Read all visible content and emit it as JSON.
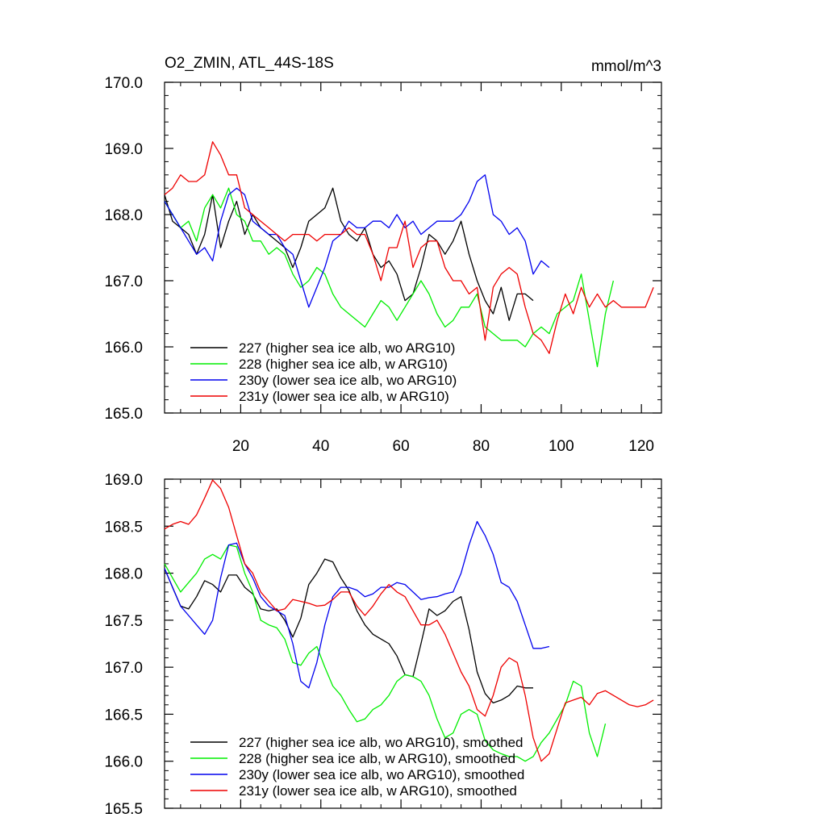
{
  "chart_data": [
    {
      "type": "line",
      "title": "O2_ZMIN, ATL_44S-18S",
      "units": "mmol/m^3",
      "xlim": [
        1,
        125
      ],
      "ylim": [
        165.0,
        170.0
      ],
      "xticks": [
        20,
        40,
        60,
        80,
        100,
        120
      ],
      "yticks": [
        "165.0",
        "166.0",
        "167.0",
        "168.0",
        "169.0",
        "170.0"
      ],
      "show_x_tick_labels": true,
      "series": [
        {
          "name": "227 (higher sea ice alb, wo ARG10)",
          "color": "#000000",
          "x": [
            1,
            3,
            5,
            7,
            9,
            11,
            13,
            15,
            17,
            19,
            21,
            23,
            25,
            27,
            29,
            31,
            33,
            35,
            37,
            39,
            41,
            43,
            45,
            47,
            49,
            51,
            53,
            55,
            57,
            59,
            61,
            63,
            65,
            67,
            69,
            71,
            73,
            75,
            77,
            79,
            81,
            83,
            85,
            87,
            89,
            91,
            93
          ],
          "y": [
            168.3,
            167.9,
            167.8,
            167.7,
            167.4,
            167.7,
            168.3,
            167.5,
            167.9,
            168.2,
            167.7,
            168.0,
            167.8,
            167.7,
            167.6,
            167.5,
            167.2,
            167.5,
            167.9,
            168.0,
            168.1,
            168.4,
            167.9,
            167.7,
            167.6,
            167.8,
            167.4,
            167.2,
            167.3,
            167.1,
            166.7,
            166.8,
            167.2,
            167.7,
            167.6,
            167.4,
            167.6,
            167.9,
            167.4,
            167.0,
            166.7,
            166.5,
            166.9,
            166.4,
            166.8,
            166.8,
            166.7
          ]
        },
        {
          "name": "228 (higher sea ice alb, w ARG10)",
          "color": "#00ee00",
          "x": [
            1,
            3,
            5,
            7,
            9,
            11,
            13,
            15,
            17,
            19,
            21,
            23,
            25,
            27,
            29,
            31,
            33,
            35,
            37,
            39,
            41,
            43,
            45,
            47,
            49,
            51,
            53,
            55,
            57,
            59,
            61,
            63,
            65,
            67,
            69,
            71,
            73,
            75,
            77,
            79,
            81,
            83,
            85,
            87,
            89,
            91,
            93,
            95,
            97,
            99,
            101,
            103,
            105,
            107,
            109,
            111,
            113
          ],
          "y": [
            168.2,
            168.0,
            167.8,
            167.9,
            167.6,
            168.1,
            168.3,
            168.1,
            168.4,
            168.0,
            167.9,
            167.6,
            167.6,
            167.4,
            167.5,
            167.4,
            167.1,
            166.9,
            167.0,
            167.2,
            167.1,
            166.8,
            166.6,
            166.5,
            166.4,
            166.3,
            166.5,
            166.7,
            166.6,
            166.4,
            166.6,
            166.8,
            167.0,
            166.8,
            166.5,
            166.3,
            166.4,
            166.6,
            166.6,
            166.8,
            166.3,
            166.2,
            166.1,
            166.1,
            166.1,
            166.0,
            166.2,
            166.3,
            166.2,
            166.5,
            166.6,
            166.7,
            167.1,
            166.4,
            165.7,
            166.5,
            167.0
          ]
        },
        {
          "name": "230y (lower sea ice alb, wo ARG10)",
          "color": "#0000ee",
          "x": [
            1,
            3,
            5,
            7,
            9,
            11,
            13,
            15,
            17,
            19,
            21,
            23,
            25,
            27,
            29,
            31,
            33,
            35,
            37,
            39,
            41,
            43,
            45,
            47,
            49,
            51,
            53,
            55,
            57,
            59,
            61,
            63,
            65,
            67,
            69,
            71,
            73,
            75,
            77,
            79,
            81,
            83,
            85,
            87,
            89,
            91,
            93,
            95,
            97
          ],
          "y": [
            168.2,
            168.0,
            167.8,
            167.6,
            167.4,
            167.5,
            167.3,
            167.9,
            168.3,
            168.4,
            168.3,
            167.9,
            167.8,
            167.7,
            167.7,
            167.5,
            167.4,
            167.0,
            166.6,
            166.9,
            167.2,
            167.6,
            167.7,
            167.9,
            167.8,
            167.8,
            167.9,
            167.9,
            167.8,
            168.0,
            167.8,
            167.9,
            167.7,
            167.8,
            167.9,
            167.9,
            167.9,
            168.0,
            168.2,
            168.5,
            168.6,
            168.0,
            167.9,
            167.7,
            167.8,
            167.6,
            167.1,
            167.3,
            167.2
          ]
        },
        {
          "name": "231y (lower sea ice alb, w ARG10)",
          "color": "#ee0000",
          "x": [
            1,
            3,
            5,
            7,
            9,
            11,
            13,
            15,
            17,
            19,
            21,
            23,
            25,
            27,
            29,
            31,
            33,
            35,
            37,
            39,
            41,
            43,
            45,
            47,
            49,
            51,
            53,
            55,
            57,
            59,
            61,
            63,
            65,
            67,
            69,
            71,
            73,
            75,
            77,
            79,
            81,
            83,
            85,
            87,
            89,
            91,
            93,
            95,
            97,
            99,
            101,
            103,
            105,
            107,
            109,
            111,
            113,
            115,
            117,
            119,
            121,
            123
          ],
          "y": [
            168.3,
            168.4,
            168.6,
            168.5,
            168.5,
            168.6,
            169.1,
            168.9,
            168.6,
            168.6,
            168.1,
            168.0,
            167.9,
            167.8,
            167.7,
            167.6,
            167.7,
            167.7,
            167.7,
            167.6,
            167.7,
            167.7,
            167.7,
            167.8,
            167.7,
            167.7,
            167.4,
            167.0,
            167.5,
            167.5,
            167.9,
            167.2,
            167.5,
            167.6,
            167.6,
            167.2,
            167.0,
            167.0,
            166.8,
            166.9,
            166.1,
            166.9,
            167.1,
            167.2,
            167.1,
            166.6,
            166.2,
            166.1,
            165.9,
            166.4,
            166.8,
            166.5,
            166.9,
            166.6,
            166.8,
            166.6,
            166.7,
            166.6,
            166.6,
            166.6,
            166.6,
            166.9
          ]
        }
      ]
    },
    {
      "type": "line",
      "title": "",
      "xlim": [
        1,
        125
      ],
      "ylim": [
        165.5,
        169.0
      ],
      "xticks": [
        20,
        40,
        60,
        80,
        100,
        120
      ],
      "yticks": [
        "165.5",
        "166.0",
        "166.5",
        "167.0",
        "167.5",
        "168.0",
        "168.5",
        "169.0"
      ],
      "show_x_tick_labels": false,
      "series": [
        {
          "name": "227 (higher sea ice alb, wo ARG10), smoothed",
          "color": "#000000",
          "x": [
            1,
            3,
            5,
            7,
            9,
            11,
            13,
            15,
            17,
            19,
            21,
            23,
            25,
            27,
            29,
            31,
            33,
            35,
            37,
            39,
            41,
            43,
            45,
            47,
            49,
            51,
            53,
            55,
            57,
            59,
            61,
            63,
            65,
            67,
            69,
            71,
            73,
            75,
            77,
            79,
            81,
            83,
            85,
            87,
            89,
            91,
            93
          ],
          "y": [
            168.05,
            167.85,
            167.65,
            167.62,
            167.75,
            167.92,
            167.88,
            167.8,
            167.98,
            167.98,
            167.85,
            167.78,
            167.62,
            167.6,
            167.62,
            167.5,
            167.32,
            167.52,
            167.88,
            168.0,
            168.15,
            168.12,
            167.95,
            167.82,
            167.6,
            167.45,
            167.35,
            167.3,
            167.25,
            167.12,
            166.92,
            166.9,
            167.25,
            167.62,
            167.55,
            167.6,
            167.7,
            167.75,
            167.4,
            166.95,
            166.72,
            166.62,
            166.65,
            166.7,
            166.8,
            166.78,
            166.78
          ]
        },
        {
          "name": "228 (higher sea ice alb, w ARG10), smoothed",
          "color": "#00ee00",
          "x": [
            1,
            3,
            5,
            7,
            9,
            11,
            13,
            15,
            17,
            19,
            21,
            23,
            25,
            27,
            29,
            31,
            33,
            35,
            37,
            39,
            41,
            43,
            45,
            47,
            49,
            51,
            53,
            55,
            57,
            59,
            61,
            63,
            65,
            67,
            69,
            71,
            73,
            75,
            77,
            79,
            81,
            83,
            85,
            87,
            89,
            91,
            93,
            95,
            97,
            99,
            101,
            103,
            105,
            107,
            109,
            111
          ],
          "y": [
            168.1,
            167.95,
            167.8,
            167.9,
            168.0,
            168.15,
            168.2,
            168.15,
            168.3,
            168.28,
            168.0,
            167.8,
            167.5,
            167.45,
            167.42,
            167.3,
            167.05,
            167.02,
            167.15,
            167.22,
            167.0,
            166.8,
            166.7,
            166.55,
            166.42,
            166.45,
            166.55,
            166.6,
            166.7,
            166.85,
            166.92,
            166.9,
            166.85,
            166.7,
            166.45,
            166.25,
            166.3,
            166.5,
            166.55,
            166.5,
            166.22,
            166.12,
            166.08,
            166.05,
            166.05,
            166.0,
            166.05,
            166.2,
            166.3,
            166.45,
            166.6,
            166.85,
            166.8,
            166.3,
            166.05,
            166.4
          ]
        },
        {
          "name": "230y (lower sea ice alb, wo ARG10), smoothed",
          "color": "#0000ee",
          "x": [
            1,
            3,
            5,
            7,
            9,
            11,
            13,
            15,
            17,
            19,
            21,
            23,
            25,
            27,
            29,
            31,
            33,
            35,
            37,
            39,
            41,
            43,
            45,
            47,
            49,
            51,
            53,
            55,
            57,
            59,
            61,
            63,
            65,
            67,
            69,
            71,
            73,
            75,
            77,
            79,
            81,
            83,
            85,
            87,
            89,
            91,
            93,
            95,
            97
          ],
          "y": [
            168.05,
            167.85,
            167.65,
            167.55,
            167.45,
            167.35,
            167.5,
            167.95,
            168.3,
            168.32,
            168.1,
            167.95,
            167.75,
            167.65,
            167.6,
            167.55,
            167.25,
            166.85,
            166.78,
            167.05,
            167.45,
            167.75,
            167.85,
            167.85,
            167.82,
            167.75,
            167.78,
            167.85,
            167.85,
            167.9,
            167.88,
            167.8,
            167.72,
            167.74,
            167.75,
            167.78,
            167.8,
            168.0,
            168.3,
            168.55,
            168.4,
            168.2,
            167.9,
            167.85,
            167.7,
            167.45,
            167.2,
            167.2,
            167.22
          ]
        },
        {
          "name": "231y (lower sea ice alb, w ARG10), smoothed",
          "color": "#ee0000",
          "x": [
            1,
            3,
            5,
            7,
            9,
            11,
            13,
            15,
            17,
            19,
            21,
            23,
            25,
            27,
            29,
            31,
            33,
            35,
            37,
            39,
            41,
            43,
            45,
            47,
            49,
            51,
            53,
            55,
            57,
            59,
            61,
            63,
            65,
            67,
            69,
            71,
            73,
            75,
            77,
            79,
            81,
            83,
            85,
            87,
            89,
            91,
            93,
            95,
            97,
            99,
            101,
            103,
            105,
            107,
            109,
            111,
            113,
            115,
            117,
            119,
            121,
            123
          ],
          "y": [
            168.47,
            168.52,
            168.55,
            168.52,
            168.62,
            168.8,
            168.99,
            168.9,
            168.7,
            168.4,
            168.1,
            168.0,
            167.8,
            167.7,
            167.6,
            167.62,
            167.72,
            167.7,
            167.68,
            167.65,
            167.66,
            167.72,
            167.8,
            167.8,
            167.65,
            167.55,
            167.65,
            167.78,
            167.88,
            167.8,
            167.75,
            167.6,
            167.45,
            167.45,
            167.5,
            167.35,
            167.15,
            166.95,
            166.8,
            166.55,
            166.48,
            166.7,
            167.0,
            167.1,
            167.05,
            166.7,
            166.25,
            166.0,
            166.08,
            166.35,
            166.62,
            166.65,
            166.68,
            166.6,
            166.72,
            166.75,
            166.7,
            166.65,
            166.6,
            166.58,
            166.6,
            166.65
          ]
        }
      ]
    }
  ]
}
